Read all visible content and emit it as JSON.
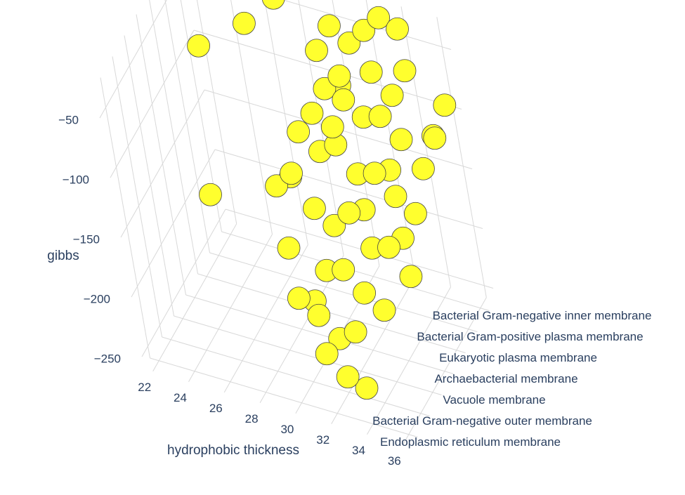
{
  "chart_data": {
    "type": "scatter3d",
    "x_label": "hydrophobic thickness",
    "y_label": "",
    "z_label": "gibbs",
    "categories": [
      "Endoplasmic reticulum membrane",
      "Bacterial Gram-negative outer membrane",
      "Vacuole membrane",
      "Archaebacterial membrane",
      "Eukaryotic plasma membrane",
      "Bacterial Gram-positive plasma membrane",
      "Bacterial Gram-negative inner membrane"
    ],
    "color": "#ffff2e",
    "xlim": [
      21.5,
      36.5
    ],
    "xticks": [
      22,
      24,
      26,
      28,
      30,
      32,
      34,
      36
    ],
    "zlim": [
      -260,
      -25
    ],
    "zticks": [
      {
        "value": -50,
        "label": "−50"
      },
      {
        "value": -100,
        "label": "−100"
      },
      {
        "value": -150,
        "label": "−150"
      },
      {
        "value": -200,
        "label": "−200"
      },
      {
        "value": -250,
        "label": "−250"
      }
    ],
    "grid": true,
    "x": [
      24,
      23,
      25,
      27,
      28,
      29,
      30,
      31,
      32,
      33,
      34,
      29,
      30,
      31,
      32,
      33,
      34,
      35,
      36,
      36,
      30,
      31,
      32,
      33,
      34,
      35,
      28,
      30,
      31,
      32,
      33,
      34,
      29,
      31,
      32,
      33,
      34,
      30,
      31,
      32,
      33,
      34,
      33,
      32,
      31,
      32,
      33,
      34,
      35,
      30,
      31,
      29,
      33,
      34,
      35,
      28,
      30,
      32
    ],
    "y": [
      "Archaebacterial membrane",
      "Bacterial Gram-positive plasma membrane",
      "Bacterial Gram-negative inner membrane",
      "Bacterial Gram-negative inner membrane",
      "Eukaryotic plasma membrane",
      "Bacterial Gram-positive plasma membrane",
      "Bacterial Gram-negative inner membrane",
      "Bacterial Gram-negative inner membrane",
      "Bacterial Gram-negative inner membrane",
      "Bacterial Gram-negative inner membrane",
      "Bacterial Gram-negative inner membrane",
      "Bacterial Gram-negative inner membrane",
      "Bacterial Gram-positive plasma membrane",
      "Bacterial Gram-positive plasma membrane",
      "Bacterial Gram-positive plasma membrane",
      "Bacterial Gram-positive plasma membrane",
      "Bacterial Gram-positive plasma membrane",
      "Bacterial Gram-negative inner membrane",
      "Bacterial Gram-negative inner membrane",
      "Bacterial Gram-positive plasma membrane",
      "Eukaryotic plasma membrane",
      "Eukaryotic plasma membrane",
      "Eukaryotic plasma membrane",
      "Eukaryotic plasma membrane",
      "Eukaryotic plasma membrane",
      "Eukaryotic plasma membrane",
      "Archaebacterial membrane",
      "Archaebacterial membrane",
      "Archaebacterial membrane",
      "Archaebacterial membrane",
      "Archaebacterial membrane",
      "Archaebacterial membrane",
      "Vacuole membrane",
      "Vacuole membrane",
      "Vacuole membrane",
      "Vacuole membrane",
      "Vacuole membrane",
      "Bacterial Gram-negative outer membrane",
      "Bacterial Gram-negative outer membrane",
      "Bacterial Gram-negative outer membrane",
      "Bacterial Gram-negative outer membrane",
      "Endoplasmic reticulum membrane",
      "Endoplasmic reticulum membrane",
      "Endoplasmic reticulum membrane",
      "Bacterial Gram-positive plasma membrane",
      "Bacterial Gram-negative inner membrane",
      "Bacterial Gram-negative inner membrane",
      "Bacterial Gram-negative inner membrane",
      "Bacterial Gram-positive plasma membrane",
      "Bacterial Gram-negative inner membrane",
      "Eukaryotic plasma membrane",
      "Archaebacterial membrane",
      "Bacterial Gram-positive plasma membrane",
      "Eukaryotic plasma membrane",
      "Archaebacterial membrane",
      "Bacterial Gram-positive plasma membrane",
      "Vacuole membrane",
      "Eukaryotic plasma membrane"
    ],
    "z": [
      -165,
      -80,
      -70,
      -40,
      -150,
      -110,
      -50,
      -60,
      -45,
      -30,
      -35,
      -75,
      -85,
      -90,
      -100,
      -95,
      -110,
      -120,
      -90,
      -100,
      -120,
      -110,
      -130,
      -125,
      -140,
      -150,
      -140,
      -150,
      -160,
      -145,
      -170,
      -165,
      -170,
      -180,
      -175,
      -190,
      -200,
      -190,
      -200,
      -215,
      -205,
      -230,
      -225,
      -210,
      -70,
      -80,
      -95,
      -70,
      -130,
      -100,
      -95,
      -125,
      -140,
      -175,
      -185,
      -130,
      -210,
      -160
    ]
  }
}
